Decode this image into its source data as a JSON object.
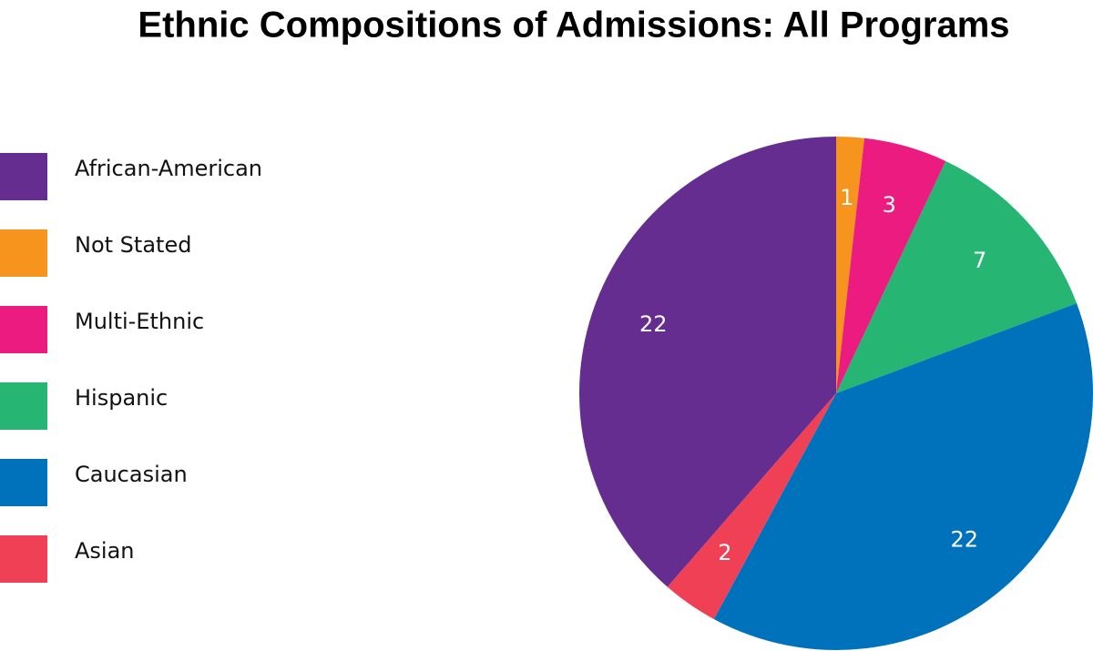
{
  "chart_data": {
    "type": "pie",
    "title": "Ethnic Compositions of Admissions: All Programs",
    "categories": [
      "African-American",
      "Not Stated",
      "Multi-Ethnic",
      "Hispanic",
      "Caucasian",
      "Asian"
    ],
    "values": [
      22,
      1,
      3,
      7,
      22,
      2
    ],
    "colors": [
      "#662d91",
      "#f7941d",
      "#ec1b7f",
      "#27b574",
      "#0072bc",
      "#ef4056"
    ]
  }
}
